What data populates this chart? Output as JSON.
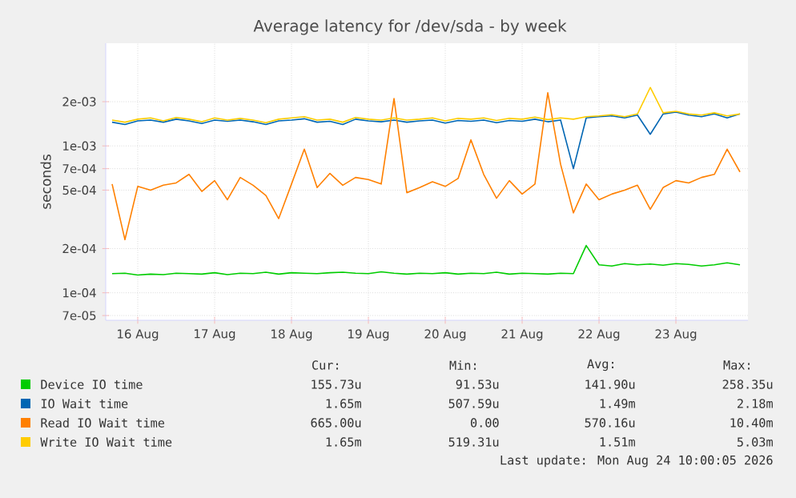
{
  "chart_data": {
    "type": "line",
    "title": "Average latency for /dev/sda - by week",
    "ylabel": "seconds",
    "log": "y",
    "grid": true,
    "legend": "bottom",
    "xlim": [
      "2026-08-16T02:00",
      "2026-08-24T10:30"
    ],
    "xticks": [
      {
        "value": "2026-08-16T12:00",
        "label": "16 Aug"
      },
      {
        "value": "2026-08-17T12:00",
        "label": "17 Aug"
      },
      {
        "value": "2026-08-18T12:00",
        "label": "18 Aug"
      },
      {
        "value": "2026-08-19T12:00",
        "label": "19 Aug"
      },
      {
        "value": "2026-08-20T12:00",
        "label": "20 Aug"
      },
      {
        "value": "2026-08-21T12:00",
        "label": "21 Aug"
      },
      {
        "value": "2026-08-22T12:00",
        "label": "22 Aug"
      },
      {
        "value": "2026-08-23T12:00",
        "label": "23 Aug"
      }
    ],
    "ylim": [
      6.5e-05,
      0.005
    ],
    "yticks": [
      {
        "value": 7e-05,
        "label": "7e-05"
      },
      {
        "value": 0.0001,
        "label": "1e-04"
      },
      {
        "value": 0.0002,
        "label": "2e-04"
      },
      {
        "value": 0.0005,
        "label": "5e-04"
      },
      {
        "value": 0.0007,
        "label": "7e-04"
      },
      {
        "value": 0.001,
        "label": "1e-03"
      },
      {
        "value": 0.002,
        "label": "2e-03"
      }
    ],
    "x": [
      "2026-08-16T04:00",
      "2026-08-16T08:00",
      "2026-08-16T12:00",
      "2026-08-16T16:00",
      "2026-08-16T20:00",
      "2026-08-17T00:00",
      "2026-08-17T04:00",
      "2026-08-17T08:00",
      "2026-08-17T12:00",
      "2026-08-17T16:00",
      "2026-08-17T20:00",
      "2026-08-18T00:00",
      "2026-08-18T04:00",
      "2026-08-18T08:00",
      "2026-08-18T12:00",
      "2026-08-18T16:00",
      "2026-08-18T20:00",
      "2026-08-19T00:00",
      "2026-08-19T04:00",
      "2026-08-19T08:00",
      "2026-08-19T12:00",
      "2026-08-19T16:00",
      "2026-08-19T20:00",
      "2026-08-20T00:00",
      "2026-08-20T04:00",
      "2026-08-20T08:00",
      "2026-08-20T12:00",
      "2026-08-20T16:00",
      "2026-08-20T20:00",
      "2026-08-21T00:00",
      "2026-08-21T04:00",
      "2026-08-21T08:00",
      "2026-08-21T12:00",
      "2026-08-21T16:00",
      "2026-08-21T20:00",
      "2026-08-22T00:00",
      "2026-08-22T04:00",
      "2026-08-22T08:00",
      "2026-08-22T12:00",
      "2026-08-22T16:00",
      "2026-08-22T20:00",
      "2026-08-23T00:00",
      "2026-08-23T04:00",
      "2026-08-23T08:00",
      "2026-08-23T12:00",
      "2026-08-23T16:00",
      "2026-08-23T20:00",
      "2026-08-24T00:00",
      "2026-08-24T04:00",
      "2026-08-24T08:00"
    ],
    "series": [
      {
        "name": "Device IO time",
        "color": "#00cc00",
        "values": [
          0.000135,
          0.000136,
          0.000132,
          0.000134,
          0.000133,
          0.000136,
          0.000135,
          0.000134,
          0.000137,
          0.000133,
          0.000136,
          0.000135,
          0.000138,
          0.000134,
          0.000137,
          0.000136,
          0.000135,
          0.000137,
          0.000138,
          0.000136,
          0.000135,
          0.000139,
          0.000136,
          0.000134,
          0.000136,
          0.000135,
          0.000137,
          0.000134,
          0.000136,
          0.000135,
          0.000138,
          0.000134,
          0.000136,
          0.000135,
          0.000134,
          0.000136,
          0.000135,
          0.00021,
          0.000155,
          0.000152,
          0.000158,
          0.000155,
          0.000157,
          0.000154,
          0.000158,
          0.000156,
          0.000152,
          0.000155,
          0.00016,
          0.000155
        ]
      },
      {
        "name": "IO Wait time",
        "color": "#0066b3",
        "values": [
          0.00145,
          0.0014,
          0.00148,
          0.0015,
          0.00145,
          0.00152,
          0.00148,
          0.00142,
          0.0015,
          0.00147,
          0.0015,
          0.00146,
          0.0014,
          0.00148,
          0.0015,
          0.00153,
          0.00145,
          0.00147,
          0.0014,
          0.00152,
          0.00148,
          0.00146,
          0.0015,
          0.00145,
          0.00148,
          0.0015,
          0.00143,
          0.00149,
          0.00147,
          0.0015,
          0.00144,
          0.00149,
          0.00147,
          0.00152,
          0.00146,
          0.0015,
          0.0007,
          0.00155,
          0.00158,
          0.0016,
          0.00155,
          0.00162,
          0.0012,
          0.00165,
          0.0017,
          0.00162,
          0.00158,
          0.00165,
          0.00155,
          0.00165
        ]
      },
      {
        "name": "Read IO Wait time",
        "color": "#ff8000",
        "values": [
          0.00055,
          0.00023,
          0.00053,
          0.0005,
          0.00054,
          0.00056,
          0.00064,
          0.00049,
          0.00058,
          0.00043,
          0.00061,
          0.00054,
          0.00046,
          0.00032,
          0.00055,
          0.00095,
          0.00052,
          0.00065,
          0.00054,
          0.00061,
          0.00059,
          0.00055,
          0.0021,
          0.00048,
          0.00052,
          0.00057,
          0.00053,
          0.0006,
          0.0011,
          0.00064,
          0.00044,
          0.00058,
          0.00047,
          0.00055,
          0.0023,
          0.00075,
          0.00035,
          0.00055,
          0.00043,
          0.00047,
          0.0005,
          0.00054,
          0.00037,
          0.00052,
          0.00058,
          0.00056,
          0.00061,
          0.00064,
          0.00095,
          0.000665
        ]
      },
      {
        "name": "Write IO Wait time",
        "color": "#ffcc00",
        "values": [
          0.0015,
          0.00145,
          0.00152,
          0.00155,
          0.00148,
          0.00156,
          0.00152,
          0.00146,
          0.00155,
          0.0015,
          0.00154,
          0.0015,
          0.00144,
          0.00152,
          0.00155,
          0.00158,
          0.0015,
          0.00152,
          0.00145,
          0.00156,
          0.00152,
          0.0015,
          0.00155,
          0.0015,
          0.00152,
          0.00155,
          0.00148,
          0.00154,
          0.00152,
          0.00155,
          0.00149,
          0.00154,
          0.00152,
          0.00157,
          0.00151,
          0.00155,
          0.00152,
          0.00158,
          0.0016,
          0.00163,
          0.00158,
          0.00165,
          0.0025,
          0.00168,
          0.00172,
          0.00165,
          0.00162,
          0.00168,
          0.0016,
          0.00165
        ]
      }
    ],
    "annotations": [
      "Cur:",
      "Min:",
      "Avg:",
      "Max:",
      "155.73u",
      "91.53u",
      "141.90u",
      "258.35u",
      "1.65m",
      "507.59u",
      "1.49m",
      "2.18m",
      "665.00u",
      "0.00",
      "570.16u",
      "10.40m",
      "1.65m",
      "519.31u",
      "1.51m",
      "5.03m",
      "Last update: Mon Aug 24 10:00:05 2026"
    ]
  }
}
